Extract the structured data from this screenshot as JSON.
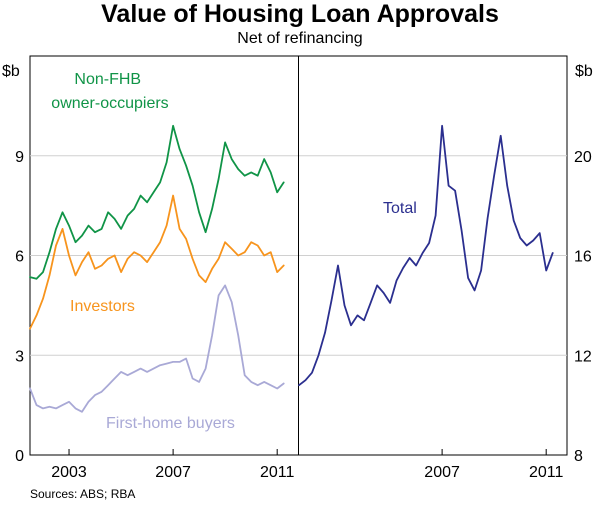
{
  "chart_data": {
    "type": "line",
    "title": "Value of Housing Loan Approvals",
    "subtitle": "Net of refinancing",
    "source": "Sources: ABS; RBA",
    "colors": {
      "non_fhb": "#109447",
      "investors": "#f7941d",
      "first_home": "#a9a9d6",
      "total": "#2b2f8f",
      "axis": "#000000",
      "grid": "#d0d0d0"
    },
    "panels": [
      {
        "name": "left",
        "y_unit": "$b",
        "ylim": [
          0,
          12
        ],
        "yticks": [
          0,
          3,
          6,
          9
        ],
        "xlim": [
          2001.5,
          2011.8
        ],
        "xticks": [
          2003,
          2007,
          2011
        ],
        "series": [
          {
            "name": "Non-FHB owner-occupiers",
            "label_lines": [
              "Non-FHB",
              "owner-occupiers"
            ],
            "color_key": "non_fhb",
            "x": [
              2001.5,
              2001.75,
              2002.0,
              2002.25,
              2002.5,
              2002.75,
              2003.0,
              2003.25,
              2003.5,
              2003.75,
              2004.0,
              2004.25,
              2004.5,
              2004.75,
              2005.0,
              2005.25,
              2005.5,
              2005.75,
              2006.0,
              2006.25,
              2006.5,
              2006.75,
              2007.0,
              2007.25,
              2007.5,
              2007.75,
              2008.0,
              2008.25,
              2008.5,
              2008.75,
              2009.0,
              2009.25,
              2009.5,
              2009.75,
              2010.0,
              2010.25,
              2010.5,
              2010.75,
              2011.0,
              2011.25
            ],
            "y": [
              5.35,
              5.3,
              5.5,
              6.1,
              6.8,
              7.3,
              6.9,
              6.4,
              6.6,
              6.9,
              6.7,
              6.8,
              7.3,
              7.1,
              6.8,
              7.2,
              7.4,
              7.8,
              7.6,
              7.9,
              8.2,
              8.8,
              9.9,
              9.2,
              8.7,
              8.1,
              7.3,
              6.7,
              7.4,
              8.3,
              9.4,
              8.9,
              8.6,
              8.4,
              8.5,
              8.4,
              8.9,
              8.5,
              7.9,
              8.2
            ]
          },
          {
            "name": "Investors",
            "label_lines": [
              "Investors"
            ],
            "color_key": "investors",
            "x": [
              2001.5,
              2001.75,
              2002.0,
              2002.25,
              2002.5,
              2002.75,
              2003.0,
              2003.25,
              2003.5,
              2003.75,
              2004.0,
              2004.25,
              2004.5,
              2004.75,
              2005.0,
              2005.25,
              2005.5,
              2005.75,
              2006.0,
              2006.25,
              2006.5,
              2006.75,
              2007.0,
              2007.25,
              2007.5,
              2007.75,
              2008.0,
              2008.25,
              2008.5,
              2008.75,
              2009.0,
              2009.25,
              2009.5,
              2009.75,
              2010.0,
              2010.25,
              2010.5,
              2010.75,
              2011.0,
              2011.25
            ],
            "y": [
              3.8,
              4.2,
              4.7,
              5.4,
              6.3,
              6.8,
              6.0,
              5.4,
              5.8,
              6.1,
              5.6,
              5.7,
              5.9,
              6.0,
              5.5,
              5.9,
              6.1,
              6.0,
              5.8,
              6.1,
              6.4,
              6.9,
              7.8,
              6.8,
              6.5,
              5.9,
              5.4,
              5.2,
              5.6,
              5.9,
              6.4,
              6.2,
              6.0,
              6.1,
              6.4,
              6.3,
              6.0,
              6.1,
              5.5,
              5.7
            ]
          },
          {
            "name": "First-home buyers",
            "label_lines": [
              "First-home buyers"
            ],
            "color_key": "first_home",
            "x": [
              2001.5,
              2001.75,
              2002.0,
              2002.25,
              2002.5,
              2002.75,
              2003.0,
              2003.25,
              2003.5,
              2003.75,
              2004.0,
              2004.25,
              2004.5,
              2004.75,
              2005.0,
              2005.25,
              2005.5,
              2005.75,
              2006.0,
              2006.25,
              2006.5,
              2006.75,
              2007.0,
              2007.25,
              2007.5,
              2007.75,
              2008.0,
              2008.25,
              2008.5,
              2008.75,
              2009.0,
              2009.25,
              2009.5,
              2009.75,
              2010.0,
              2010.25,
              2010.5,
              2010.75,
              2011.0,
              2011.25
            ],
            "y": [
              2.0,
              1.5,
              1.4,
              1.45,
              1.4,
              1.5,
              1.6,
              1.4,
              1.3,
              1.6,
              1.8,
              1.9,
              2.1,
              2.3,
              2.5,
              2.4,
              2.5,
              2.6,
              2.5,
              2.6,
              2.7,
              2.75,
              2.8,
              2.8,
              2.9,
              2.3,
              2.2,
              2.6,
              3.6,
              4.8,
              5.1,
              4.6,
              3.6,
              2.4,
              2.2,
              2.1,
              2.2,
              2.1,
              2.0,
              2.15
            ]
          }
        ]
      },
      {
        "name": "right",
        "y_unit": "$b",
        "ylim": [
          8,
          24
        ],
        "yticks": [
          8,
          12,
          16,
          20
        ],
        "xlim": [
          2001.5,
          2011.8
        ],
        "xticks": [
          2007,
          2011
        ],
        "series": [
          {
            "name": "Total",
            "label_lines": [
              "Total"
            ],
            "color_key": "total",
            "x": [
              2001.5,
              2001.75,
              2002.0,
              2002.25,
              2002.5,
              2002.75,
              2003.0,
              2003.25,
              2003.5,
              2003.75,
              2004.0,
              2004.25,
              2004.5,
              2004.75,
              2005.0,
              2005.25,
              2005.5,
              2005.75,
              2006.0,
              2006.25,
              2006.5,
              2006.75,
              2007.0,
              2007.25,
              2007.5,
              2007.75,
              2008.0,
              2008.25,
              2008.5,
              2008.75,
              2009.0,
              2009.25,
              2009.5,
              2009.75,
              2010.0,
              2010.25,
              2010.5,
              2010.75,
              2011.0,
              2011.25
            ],
            "y": [
              10.8,
              11.0,
              11.3,
              12.0,
              12.9,
              14.2,
              15.6,
              14.0,
              13.2,
              13.6,
              13.4,
              14.1,
              14.8,
              14.5,
              14.1,
              15.0,
              15.5,
              15.9,
              15.6,
              16.1,
              16.5,
              17.6,
              21.2,
              18.8,
              18.6,
              17.0,
              15.1,
              14.6,
              15.4,
              17.5,
              19.2,
              20.8,
              18.8,
              17.4,
              16.7,
              16.4,
              16.6,
              16.9,
              15.4,
              16.1
            ]
          }
        ]
      }
    ]
  }
}
